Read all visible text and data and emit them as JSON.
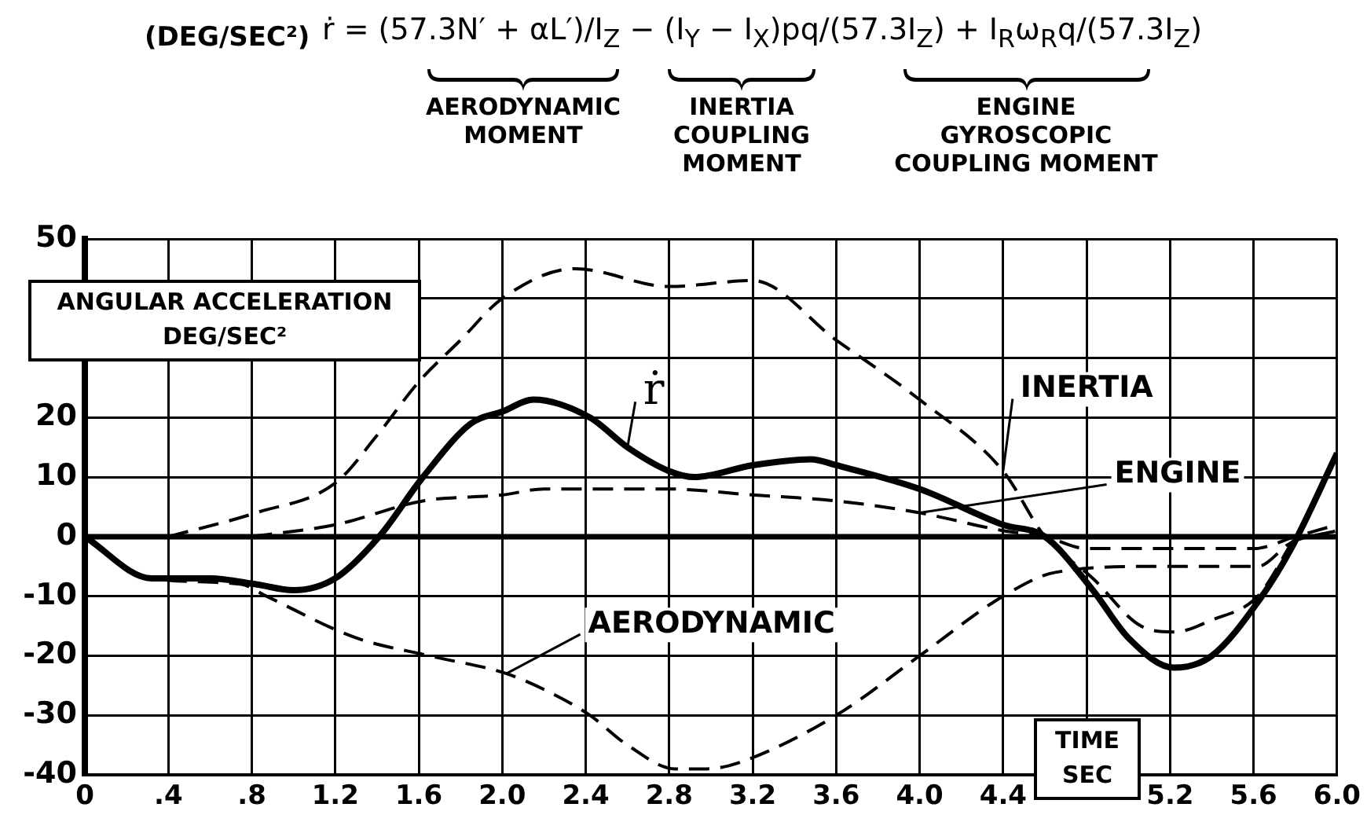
{
  "chart_data": {
    "type": "line",
    "title": "ṙ = (57.3N′ + αL′)/I$_{Z}$ − (I$_{Y}$ − I$_{X}$)pq/(57.3I$_{Z}$) + I$_{R}$ω$_{R}$q/(57.3I$_{Z}$)",
    "subtitle": "(DEG/SEC²)",
    "annotations": [
      "AERODYNAMIC MOMENT",
      "INERTIA COUPLING MOMENT",
      "ENGINE GYROSCOPIC COUPLING MOMENT"
    ],
    "xlabel": "TIME SEC",
    "ylabel": "ANGULAR ACCELERATION DEG/SEC²",
    "xlim": [
      0,
      6
    ],
    "ylim": [
      -40,
      50
    ],
    "xticks": [
      0,
      {
        "value": 0.4,
        "label": ".4"
      },
      {
        "value": 0.8,
        "label": ".8"
      },
      1.2,
      1.6,
      {
        "value": 2,
        "label": "2.0"
      },
      2.4,
      2.8,
      3.2,
      3.6,
      {
        "value": 4,
        "label": "4.0"
      },
      4.4,
      {
        "value": 4.8,
        "label": null
      },
      5.2,
      5.6,
      {
        "value": 6,
        "label": "6.0"
      }
    ],
    "yticks": [
      -40,
      -30,
      -20,
      -10,
      0,
      10,
      20,
      {
        "value": 30,
        "label": null
      },
      {
        "value": 40,
        "label": null
      },
      50
    ],
    "grid": true,
    "ref_lines": [
      {
        "axis": "y",
        "value": 0,
        "color": "#000000"
      }
    ],
    "series": [
      {
        "name": "ṙ",
        "color": "#000000",
        "line_style": "solid",
        "x": [
          0,
          0.32,
          0.6,
          0.82,
          1.0,
          1.2,
          1.41,
          1.62,
          1.85,
          2.0,
          2.15,
          2.42,
          2.6,
          2.8,
          2.92,
          3.2,
          3.48,
          3.6,
          4.0,
          4.4,
          4.6,
          4.83,
          5.0,
          5.22,
          5.4,
          5.62,
          5.78,
          6.0
        ],
        "values": [
          0,
          -7,
          -7,
          -8,
          -9,
          -7,
          0,
          10,
          19,
          21,
          23,
          20,
          15,
          11,
          10,
          12,
          13,
          12,
          8,
          2,
          0,
          -9,
          -17,
          -22,
          -20,
          -11,
          -2,
          14
        ]
      },
      {
        "name": "INERTIA",
        "color": "#000000",
        "line_style": "dashed",
        "x": [
          0.4,
          0.82,
          1.2,
          1.4,
          1.6,
          1.8,
          2.0,
          2.35,
          2.8,
          3.2,
          3.6,
          4.0,
          4.4,
          4.6,
          4.83,
          5.06,
          5.22,
          5.4,
          5.62,
          5.8
        ],
        "values": [
          0,
          4,
          9,
          17,
          26,
          33,
          40,
          45,
          42,
          43,
          33,
          23,
          11,
          0,
          -7,
          -15,
          -16,
          -14,
          -10,
          0
        ]
      },
      {
        "name": "ENGINE",
        "color": "#000000",
        "line_style": "dashed",
        "x": [
          0.8,
          1.2,
          1.62,
          2.0,
          2.2,
          2.8,
          3.2,
          3.6,
          4.0,
          4.4,
          4.6,
          4.8,
          5.1,
          5.6,
          5.8,
          6.0
        ],
        "values": [
          0,
          2,
          6,
          7,
          8,
          8,
          7,
          6,
          4,
          1,
          0,
          -2,
          -2,
          -2,
          0,
          2
        ]
      },
      {
        "name": "AERODYNAMIC",
        "color": "#000000",
        "line_style": "dashed",
        "x": [
          0,
          0.32,
          0.75,
          0.87,
          1.3,
          1.65,
          2.02,
          2.22,
          2.42,
          2.6,
          2.83,
          2.98,
          3.13,
          3.6,
          4.0,
          4.4,
          4.65,
          5.13,
          5.62,
          5.78,
          6.0
        ],
        "values": [
          0,
          -7,
          -8,
          -10,
          -17,
          -20,
          -23,
          -26,
          -30,
          -35,
          -39,
          -39,
          -38,
          -30,
          -20,
          -10,
          -6,
          -5,
          -5,
          -1,
          1
        ]
      }
    ]
  }
}
